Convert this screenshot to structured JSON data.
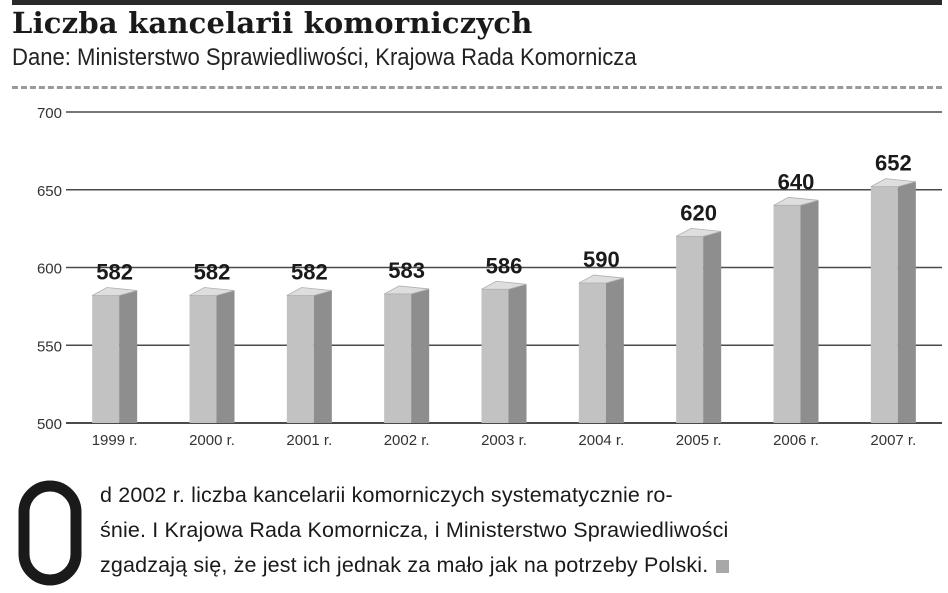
{
  "header": {
    "title": "Liczba kancelarii komorniczych",
    "subtitle": "Dane: Ministerstwo Sprawiedliwości, Krajowa Rada Komornicza"
  },
  "chart_data": {
    "type": "bar",
    "categories": [
      "1999 r.",
      "2000 r.",
      "2001 r.",
      "2002 r.",
      "2003 r.",
      "2004 r.",
      "2005 r.",
      "2006 r.",
      "2007 r."
    ],
    "values": [
      582,
      582,
      582,
      583,
      586,
      590,
      620,
      640,
      652
    ],
    "ylim": [
      500,
      700
    ],
    "yticks": [
      500,
      550,
      600,
      650,
      700
    ],
    "grid": true,
    "colors": {
      "front": "#c2c2c2",
      "side": "#8e8e8e",
      "top": "#dedede",
      "grid": "#4a4a4a"
    }
  },
  "text": {
    "dropcap": "O",
    "lines": [
      "d 2002 r. liczba kancelarii komorniczych systematycznie ro-",
      "śnie. I Krajowa Rada Komornicza, i Ministerstwo Sprawiedliwości",
      "zgadzają się, że jest ich jednak za mało jak na potrzeby Polski."
    ]
  }
}
